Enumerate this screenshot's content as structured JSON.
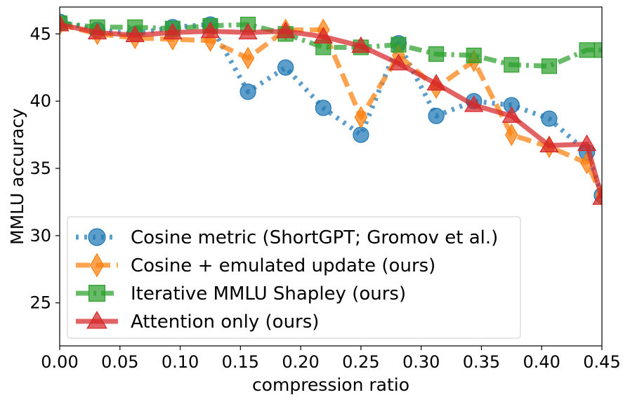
{
  "chart_data": {
    "type": "line",
    "xlabel": "compression ratio",
    "ylabel": "MMLU accuracy",
    "xlim": [
      0.0,
      0.45
    ],
    "ylim": [
      21.8,
      47.0
    ],
    "xticks": [
      0.0,
      0.05,
      0.1,
      0.15,
      0.2,
      0.25,
      0.3,
      0.35,
      0.4,
      0.45
    ],
    "xtick_labels": [
      "0.00",
      "0.05",
      "0.10",
      "0.15",
      "0.20",
      "0.25",
      "0.30",
      "0.35",
      "0.40",
      "0.45"
    ],
    "yticks": [
      25,
      30,
      35,
      40,
      45
    ],
    "ytick_labels": [
      "25",
      "30",
      "35",
      "40",
      "45"
    ],
    "grid": false,
    "legend_position": "lower-left",
    "series": [
      {
        "name": "Cosine metric (ShortGPT; Gromov et al.)",
        "color": "#1f77b4",
        "linestyle": "dotted",
        "marker": "circle",
        "x": [
          0.0,
          0.03125,
          0.0625,
          0.09375,
          0.125,
          0.15625,
          0.1875,
          0.21875,
          0.25,
          0.28125,
          0.3125,
          0.34375,
          0.375,
          0.40625,
          0.4375,
          0.45
        ],
        "y": [
          45.9,
          45.3,
          45.0,
          45.5,
          45.7,
          40.7,
          42.5,
          39.5,
          37.5,
          44.3,
          38.9,
          40.0,
          39.7,
          38.7,
          36.2,
          33.0
        ]
      },
      {
        "name": "Cosine + emulated update (ours)",
        "color": "#ff7f0e",
        "linestyle": "dashed",
        "marker": "diamond",
        "x": [
          0.0,
          0.03125,
          0.0625,
          0.09375,
          0.125,
          0.15625,
          0.1875,
          0.21875,
          0.25,
          0.28125,
          0.3125,
          0.34375,
          0.375,
          0.40625,
          0.4375,
          0.45
        ],
        "y": [
          45.7,
          45.0,
          44.7,
          44.6,
          44.5,
          43.2,
          45.3,
          45.3,
          38.8,
          43.4,
          41.0,
          43.0,
          37.5,
          36.6,
          35.4,
          33.0
        ]
      },
      {
        "name": "Iterative MMLU Shapley (ours)",
        "color": "#2ca02c",
        "linestyle": "dashdot",
        "marker": "square",
        "x": [
          0.0,
          0.03125,
          0.0625,
          0.09375,
          0.125,
          0.15625,
          0.1875,
          0.21875,
          0.25,
          0.28125,
          0.3125,
          0.34375,
          0.375,
          0.40625,
          0.4375,
          0.45
        ],
        "y": [
          45.8,
          45.5,
          45.5,
          45.4,
          45.6,
          45.7,
          45.0,
          44.0,
          44.0,
          44.2,
          43.5,
          43.4,
          42.7,
          42.6,
          43.8,
          43.8
        ]
      },
      {
        "name": "Attention only (ours)",
        "color": "#d62728",
        "linestyle": "solid",
        "marker": "triangle",
        "x": [
          0.0,
          0.03125,
          0.0625,
          0.09375,
          0.125,
          0.15625,
          0.1875,
          0.21875,
          0.25,
          0.28125,
          0.3125,
          0.34375,
          0.375,
          0.40625,
          0.4375,
          0.45
        ],
        "y": [
          45.7,
          45.1,
          44.9,
          45.1,
          45.2,
          45.1,
          45.2,
          44.8,
          44.1,
          42.8,
          41.3,
          39.7,
          38.9,
          36.7,
          36.8,
          32.8
        ]
      }
    ]
  }
}
